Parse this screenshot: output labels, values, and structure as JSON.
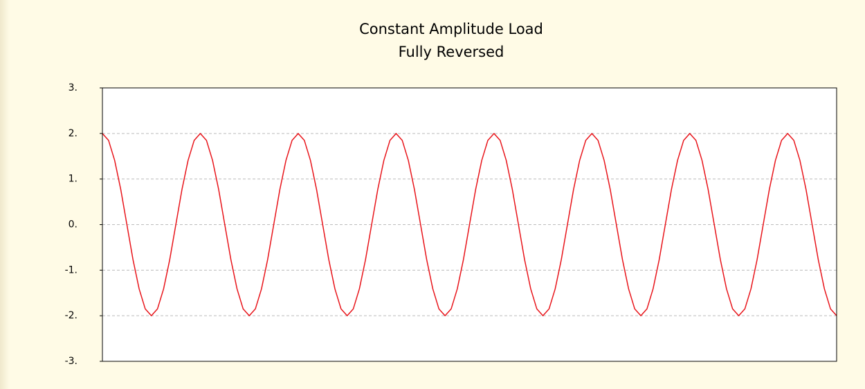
{
  "chart_data": {
    "type": "line",
    "title": "Constant Amplitude Load",
    "subtitle": "Fully Reversed",
    "color": "#e8141a",
    "grid": true,
    "ylim": [
      -3,
      3
    ],
    "yticks": [
      {
        "value": 3,
        "label": "3."
      },
      {
        "value": 2,
        "label": "2."
      },
      {
        "value": 1,
        "label": "1."
      },
      {
        "value": 0,
        "label": "0."
      },
      {
        "value": -1,
        "label": "-1."
      },
      {
        "value": -2,
        "label": "-2."
      },
      {
        "value": -3,
        "label": "-3."
      }
    ],
    "values": [
      2,
      1.85,
      1.41,
      0.77,
      0,
      -0.77,
      -1.41,
      -1.85,
      -2,
      -1.85,
      -1.41,
      -0.77,
      0,
      0.77,
      1.41,
      1.85,
      2,
      1.85,
      1.41,
      0.77,
      0,
      -0.77,
      -1.41,
      -1.85,
      -2,
      -1.85,
      -1.41,
      -0.77,
      0,
      0.77,
      1.41,
      1.85,
      2,
      1.85,
      1.41,
      0.77,
      0,
      -0.77,
      -1.41,
      -1.85,
      -2,
      -1.85,
      -1.41,
      -0.77,
      0,
      0.77,
      1.41,
      1.85,
      2,
      1.85,
      1.41,
      0.77,
      0,
      -0.77,
      -1.41,
      -1.85,
      -2,
      -1.85,
      -1.41,
      -0.77,
      0,
      0.77,
      1.41,
      1.85,
      2,
      1.85,
      1.41,
      0.77,
      0,
      -0.77,
      -1.41,
      -1.85,
      -2,
      -1.85,
      -1.41,
      -0.77,
      0,
      0.77,
      1.41,
      1.85,
      2,
      1.85,
      1.41,
      0.77,
      0,
      -0.77,
      -1.41,
      -1.85,
      -2,
      -1.85,
      -1.41,
      -0.77,
      0,
      0.77,
      1.41,
      1.85,
      2,
      1.85,
      1.41,
      0.77,
      0,
      -0.77,
      -1.41,
      -1.85,
      -2,
      -1.85,
      -1.41,
      -0.77,
      0,
      0.77,
      1.41,
      1.85,
      2,
      1.85,
      1.41,
      0.77,
      0,
      -0.77,
      -1.41,
      -1.85,
      -2
    ]
  }
}
